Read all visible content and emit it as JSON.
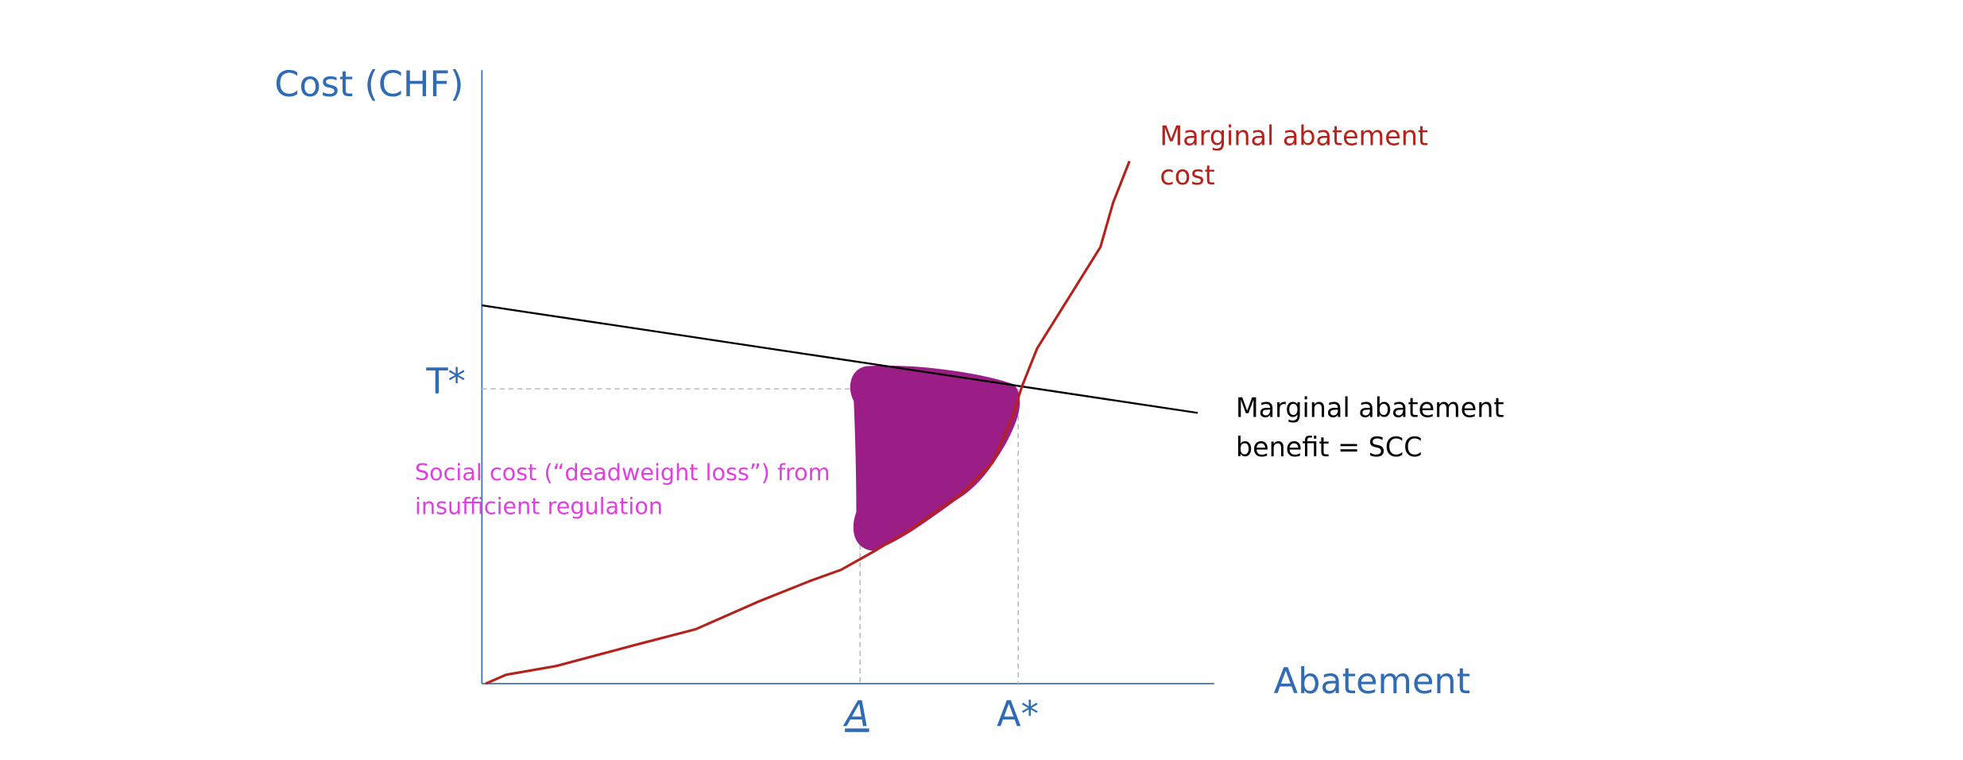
{
  "axes": {
    "y_label": "Cost (CHF)",
    "x_label": "Abatement"
  },
  "points": {
    "t_star": "T*",
    "a_under": "A",
    "a_star": "A*"
  },
  "curves": {
    "cost": [
      "Marginal abatement",
      "cost"
    ],
    "benefit": [
      "Marginal abatement",
      "benefit = SCC"
    ]
  },
  "annotation": [
    "Social cost (“deadweight loss”) from",
    "insufficient regulation"
  ]
}
